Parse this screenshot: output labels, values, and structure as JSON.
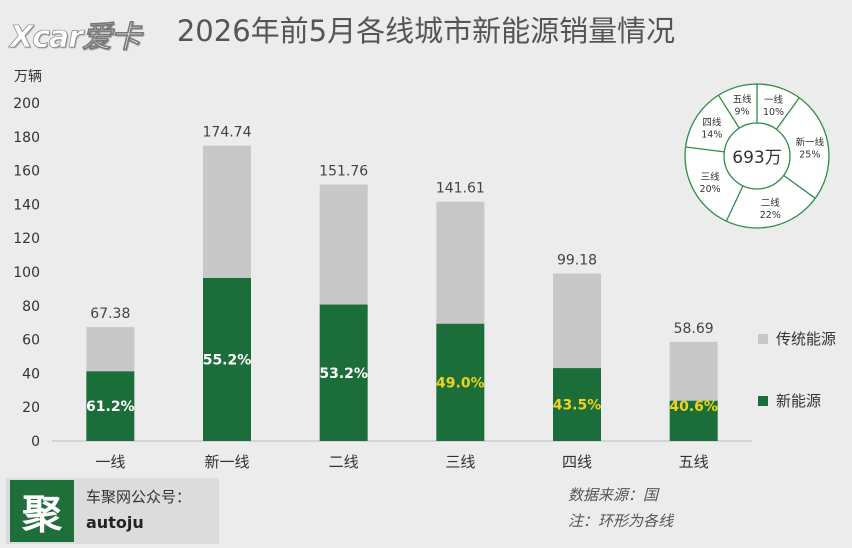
{
  "header": {
    "logo_text": "Xcar爱卡",
    "title": "2026年前5月各线城市新能源销量情况"
  },
  "colors": {
    "nev": "#1b6e39",
    "traditional": "#c8c8c8",
    "pct_white": "#ffffff",
    "pct_yellow": "#f2d11a",
    "ring_stroke": "#2e8b45"
  },
  "chart_data": {
    "type": "bar",
    "stacked": true,
    "ylabel": "万辆",
    "ylim": [
      0,
      200
    ],
    "yticks": [
      "0",
      "20",
      "40",
      "60",
      "80",
      "100",
      "120",
      "140",
      "160",
      "180",
      "200"
    ],
    "categories": [
      "一线",
      "新一线",
      "二线",
      "三线",
      "四线",
      "五线"
    ],
    "totals": [
      67.38,
      174.74,
      151.76,
      141.61,
      99.18,
      58.69
    ],
    "total_labels": [
      "67.38",
      "174.74",
      "151.76",
      "141.61",
      "99.18",
      "58.69"
    ],
    "nev_share_labels": [
      "61.2%",
      "55.2%",
      "53.2%",
      "49.0%",
      "43.5%",
      "40.6%"
    ],
    "nev_share": [
      0.612,
      0.552,
      0.532,
      0.49,
      0.435,
      0.406
    ],
    "series": [
      {
        "name": "新能源",
        "values": [
          41.24,
          96.46,
          80.74,
          69.39,
          43.14,
          23.83
        ]
      },
      {
        "name": "传统能源",
        "values": [
          26.14,
          78.28,
          71.02,
          72.22,
          56.04,
          34.86
        ]
      }
    ],
    "legend": [
      "传统能源",
      "新能源"
    ],
    "legend_position": "right",
    "grid": false,
    "donut": {
      "type": "pie",
      "center_label": "693万",
      "segments": [
        {
          "name": "一线",
          "pct_label": "10%",
          "value": 10
        },
        {
          "name": "新一线",
          "pct_label": "25%",
          "value": 25
        },
        {
          "name": "二线",
          "pct_label": "22%",
          "value": 22
        },
        {
          "name": "三线",
          "pct_label": "20%",
          "value": 20
        },
        {
          "name": "四线",
          "pct_label": "14%",
          "value": 14
        },
        {
          "name": "五线",
          "pct_label": "9%",
          "value": 9
        }
      ]
    }
  },
  "footer": {
    "mark": "聚",
    "account_name": "车聚网公众号：",
    "account_id": "autoju",
    "source_line": "数据来源：国",
    "note_line": "注：环形为各线"
  }
}
